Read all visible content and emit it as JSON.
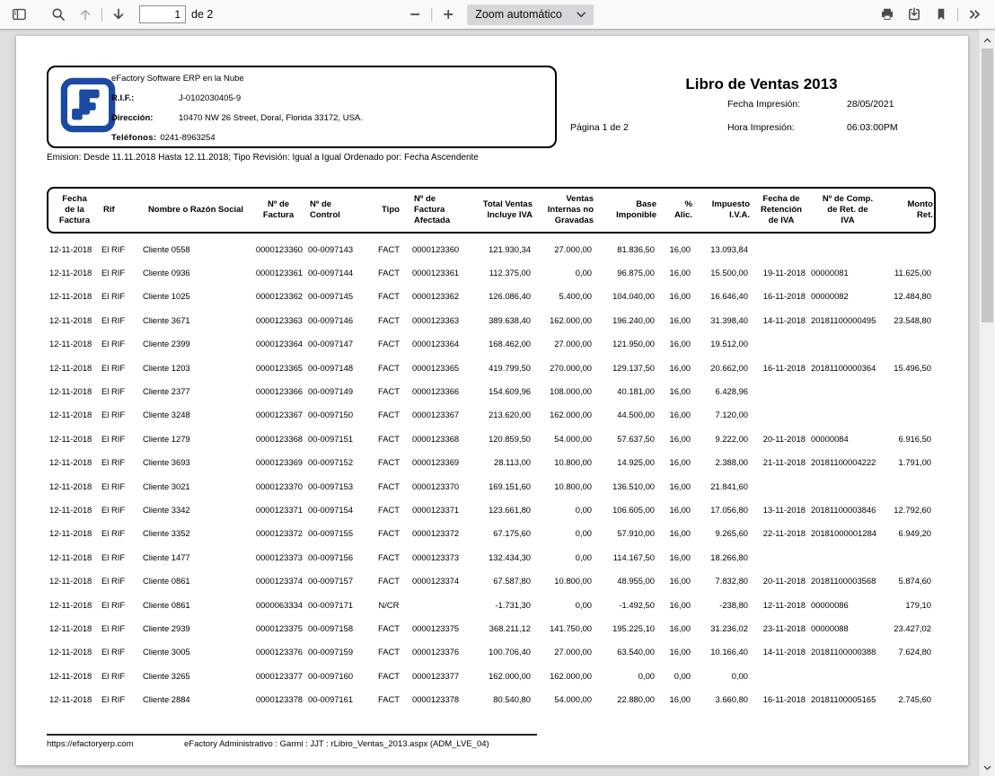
{
  "colors": {
    "brand_blue": "#1b4aa2",
    "toolbar_bg": "#f9f9fa",
    "viewer_bg": "#dedee1"
  },
  "toolbar": {
    "icons": [
      "sidebar-toggle",
      "search",
      "page-up",
      "page-down",
      "zoom-out",
      "zoom-in",
      "print",
      "download",
      "bookmark",
      "more-tools"
    ],
    "page_input": "1",
    "page_count_label": "de 2",
    "zoom_select_value": "Zoom automático"
  },
  "document": {
    "company": {
      "name": "eFactory Software ERP en la Nube",
      "rif_label": "R.I.F.:",
      "rif": "J-0102030405-9",
      "address_label": "Dirección:",
      "address": "10470 NW 26 Street, Doral, Florida 33172, USA.",
      "phones_label": "Teléfonos:",
      "phones": "0241-8963254"
    },
    "page_indicator": "Página 1 de 2",
    "title": "Libro de Ventas 2013",
    "print_date_label": "Fecha Impresión:",
    "print_date": "28/05/2021",
    "print_time_label": "Hora Impresión:",
    "print_time": "06:03:00PM",
    "emission_line": "Emision: Desde 11.11.2018  Hasta 12.11.2018; Tipo Revisión: Igual a Igual Ordenado por: Fecha Ascendente",
    "table": {
      "headers": [
        "Fecha\nde la\nFactura",
        "Rif",
        "Nombre o Razón Social",
        "Nº de\nFactura",
        "Nº de\nControl",
        "Tipo",
        "Nº de\nFactura\nAfectada",
        "Total Ventas\nIncluye IVA",
        "Ventas\nInternas no\nGravadas",
        "Base\nImponible",
        "%\nAlic.",
        "Impuesto\nI.V.A.",
        "Fecha de\nRetención\nde IVA",
        "Nº de Comp.\nde Ret. de\nIVA",
        "Monto\nRet."
      ],
      "rows": [
        [
          "12-11-2018",
          "El RIF",
          "Cliente 0558",
          "0000123360",
          "00-0097143",
          "FACT",
          "0000123360",
          "121.930,34",
          "27.000,00",
          "81.836,50",
          "16,00",
          "13.093,84",
          "",
          "",
          ""
        ],
        [
          "12-11-2018",
          "El RIF",
          "Cliente 0936",
          "0000123361",
          "00-0097144",
          "FACT",
          "0000123361",
          "112.375,00",
          "0,00",
          "96.875,00",
          "16,00",
          "15.500,00",
          "19-11-2018",
          "00000081",
          "11.625,00"
        ],
        [
          "12-11-2018",
          "El RIF",
          "Cliente 1025",
          "0000123362",
          "00-0097145",
          "FACT",
          "0000123362",
          "126.086,40",
          "5.400,00",
          "104.040,00",
          "16,00",
          "16.646,40",
          "16-11-2018",
          "00000082",
          "12.484,80"
        ],
        [
          "12-11-2018",
          "El RIF",
          "Cliente 3671",
          "0000123363",
          "00-0097146",
          "FACT",
          "0000123363",
          "389.638,40",
          "162.000,00",
          "196.240,00",
          "16,00",
          "31.398,40",
          "14-11-2018",
          "20181100000495",
          "23.548,80"
        ],
        [
          "12-11-2018",
          "El RIF",
          "Cliente 2399",
          "0000123364",
          "00-0097147",
          "FACT",
          "0000123364",
          "168.462,00",
          "27.000,00",
          "121.950,00",
          "16,00",
          "19.512,00",
          "",
          "",
          ""
        ],
        [
          "12-11-2018",
          "El RIF",
          "Cliente 1203",
          "0000123365",
          "00-0097148",
          "FACT",
          "0000123365",
          "419.799,50",
          "270.000,00",
          "129.137,50",
          "16,00",
          "20.662,00",
          "16-11-2018",
          "20181100000364",
          "15.496,50"
        ],
        [
          "12-11-2018",
          "El RIF",
          "Cliente 2377",
          "0000123366",
          "00-0097149",
          "FACT",
          "0000123366",
          "154.609,96",
          "108.000,00",
          "40.181,00",
          "16,00",
          "6.428,96",
          "",
          "",
          ""
        ],
        [
          "12-11-2018",
          "El RIF",
          "Cliente 3248",
          "0000123367",
          "00-0097150",
          "FACT",
          "0000123367",
          "213.620,00",
          "162.000,00",
          "44.500,00",
          "16,00",
          "7.120,00",
          "",
          "",
          ""
        ],
        [
          "12-11-2018",
          "El RIF",
          "Cliente 1279",
          "0000123368",
          "00-0097151",
          "FACT",
          "0000123368",
          "120.859,50",
          "54.000,00",
          "57.637,50",
          "16,00",
          "9.222,00",
          "20-11-2018",
          "00000084",
          "6.916,50"
        ],
        [
          "12-11-2018",
          "El RIF",
          "Cliente 3693",
          "0000123369",
          "00-0097152",
          "FACT",
          "0000123369",
          "28.113,00",
          "10.800,00",
          "14.925,00",
          "16,00",
          "2.388,00",
          "21-11-2018",
          "20181100004222",
          "1.791,00"
        ],
        [
          "12-11-2018",
          "El RIF",
          "Cliente 3021",
          "0000123370",
          "00-0097153",
          "FACT",
          "0000123370",
          "169.151,60",
          "10.800,00",
          "136.510,00",
          "16,00",
          "21.841,60",
          "",
          "",
          ""
        ],
        [
          "12-11-2018",
          "El RIF",
          "Cliente 3342",
          "0000123371",
          "00-0097154",
          "FACT",
          "0000123371",
          "123.661,80",
          "0,00",
          "106.605,00",
          "16,00",
          "17.056,80",
          "13-11-2018",
          "20181100003846",
          "12.792,60"
        ],
        [
          "12-11-2018",
          "El RIF",
          "Cliente 3352",
          "0000123372",
          "00-0097155",
          "FACT",
          "0000123372",
          "67.175,60",
          "0,00",
          "57.910,00",
          "16,00",
          "9.265,60",
          "22-11-2018",
          "20181000001284",
          "6.949,20"
        ],
        [
          "12-11-2018",
          "El RIF",
          "Cliente 1477",
          "0000123373",
          "00-0097156",
          "FACT",
          "0000123373",
          "132.434,30",
          "0,00",
          "114.167,50",
          "16,00",
          "18.266,80",
          "",
          "",
          ""
        ],
        [
          "12-11-2018",
          "El RIF",
          "Cliente 0861",
          "0000123374",
          "00-0097157",
          "FACT",
          "0000123374",
          "67.587,80",
          "10.800,00",
          "48.955,00",
          "16,00",
          "7.832,80",
          "20-11-2018",
          "20181100003568",
          "5.874,60"
        ],
        [
          "12-11-2018",
          "El RIF",
          "Cliente 0861",
          "0000063334",
          "00-0097171",
          "N/CR",
          "",
          "-1.731,30",
          "0,00",
          "-1.492,50",
          "16,00",
          "-238,80",
          "12-11-2018",
          "00000086",
          "179,10"
        ],
        [
          "12-11-2018",
          "El RIF",
          "Cliente 2939",
          "0000123375",
          "00-0097158",
          "FACT",
          "0000123375",
          "368.211,12",
          "141.750,00",
          "195.225,10",
          "16,00",
          "31.236,02",
          "23-11-2018",
          "00000088",
          "23.427,02"
        ],
        [
          "12-11-2018",
          "El RIF",
          "Cliente 3005",
          "0000123376",
          "00-0097159",
          "FACT",
          "0000123376",
          "100.706,40",
          "27.000,00",
          "63.540,00",
          "16,00",
          "10.166,40",
          "14-11-2018",
          "20181100000388",
          "7.624,80"
        ],
        [
          "12-11-2018",
          "El RIF",
          "Cliente 3265",
          "0000123377",
          "00-0097160",
          "FACT",
          "0000123377",
          "162.000,00",
          "162.000,00",
          "0,00",
          "0,00",
          "0,00",
          "",
          "",
          ""
        ],
        [
          "12-11-2018",
          "El RIF",
          "Cliente 2884",
          "0000123378",
          "00-0097161",
          "FACT",
          "0000123378",
          "80.540,80",
          "54.000,00",
          "22.880,00",
          "16,00",
          "3.660,80",
          "16-11-2018",
          "20181100005165",
          "2.745,60"
        ]
      ]
    },
    "footer": {
      "url": "https://efactoryerp.com",
      "info": "eFactory Administrativo  :  Garmi  :  JJT  :  rLibro_Ventas_2013.aspx (ADM_LVE_04)"
    }
  }
}
